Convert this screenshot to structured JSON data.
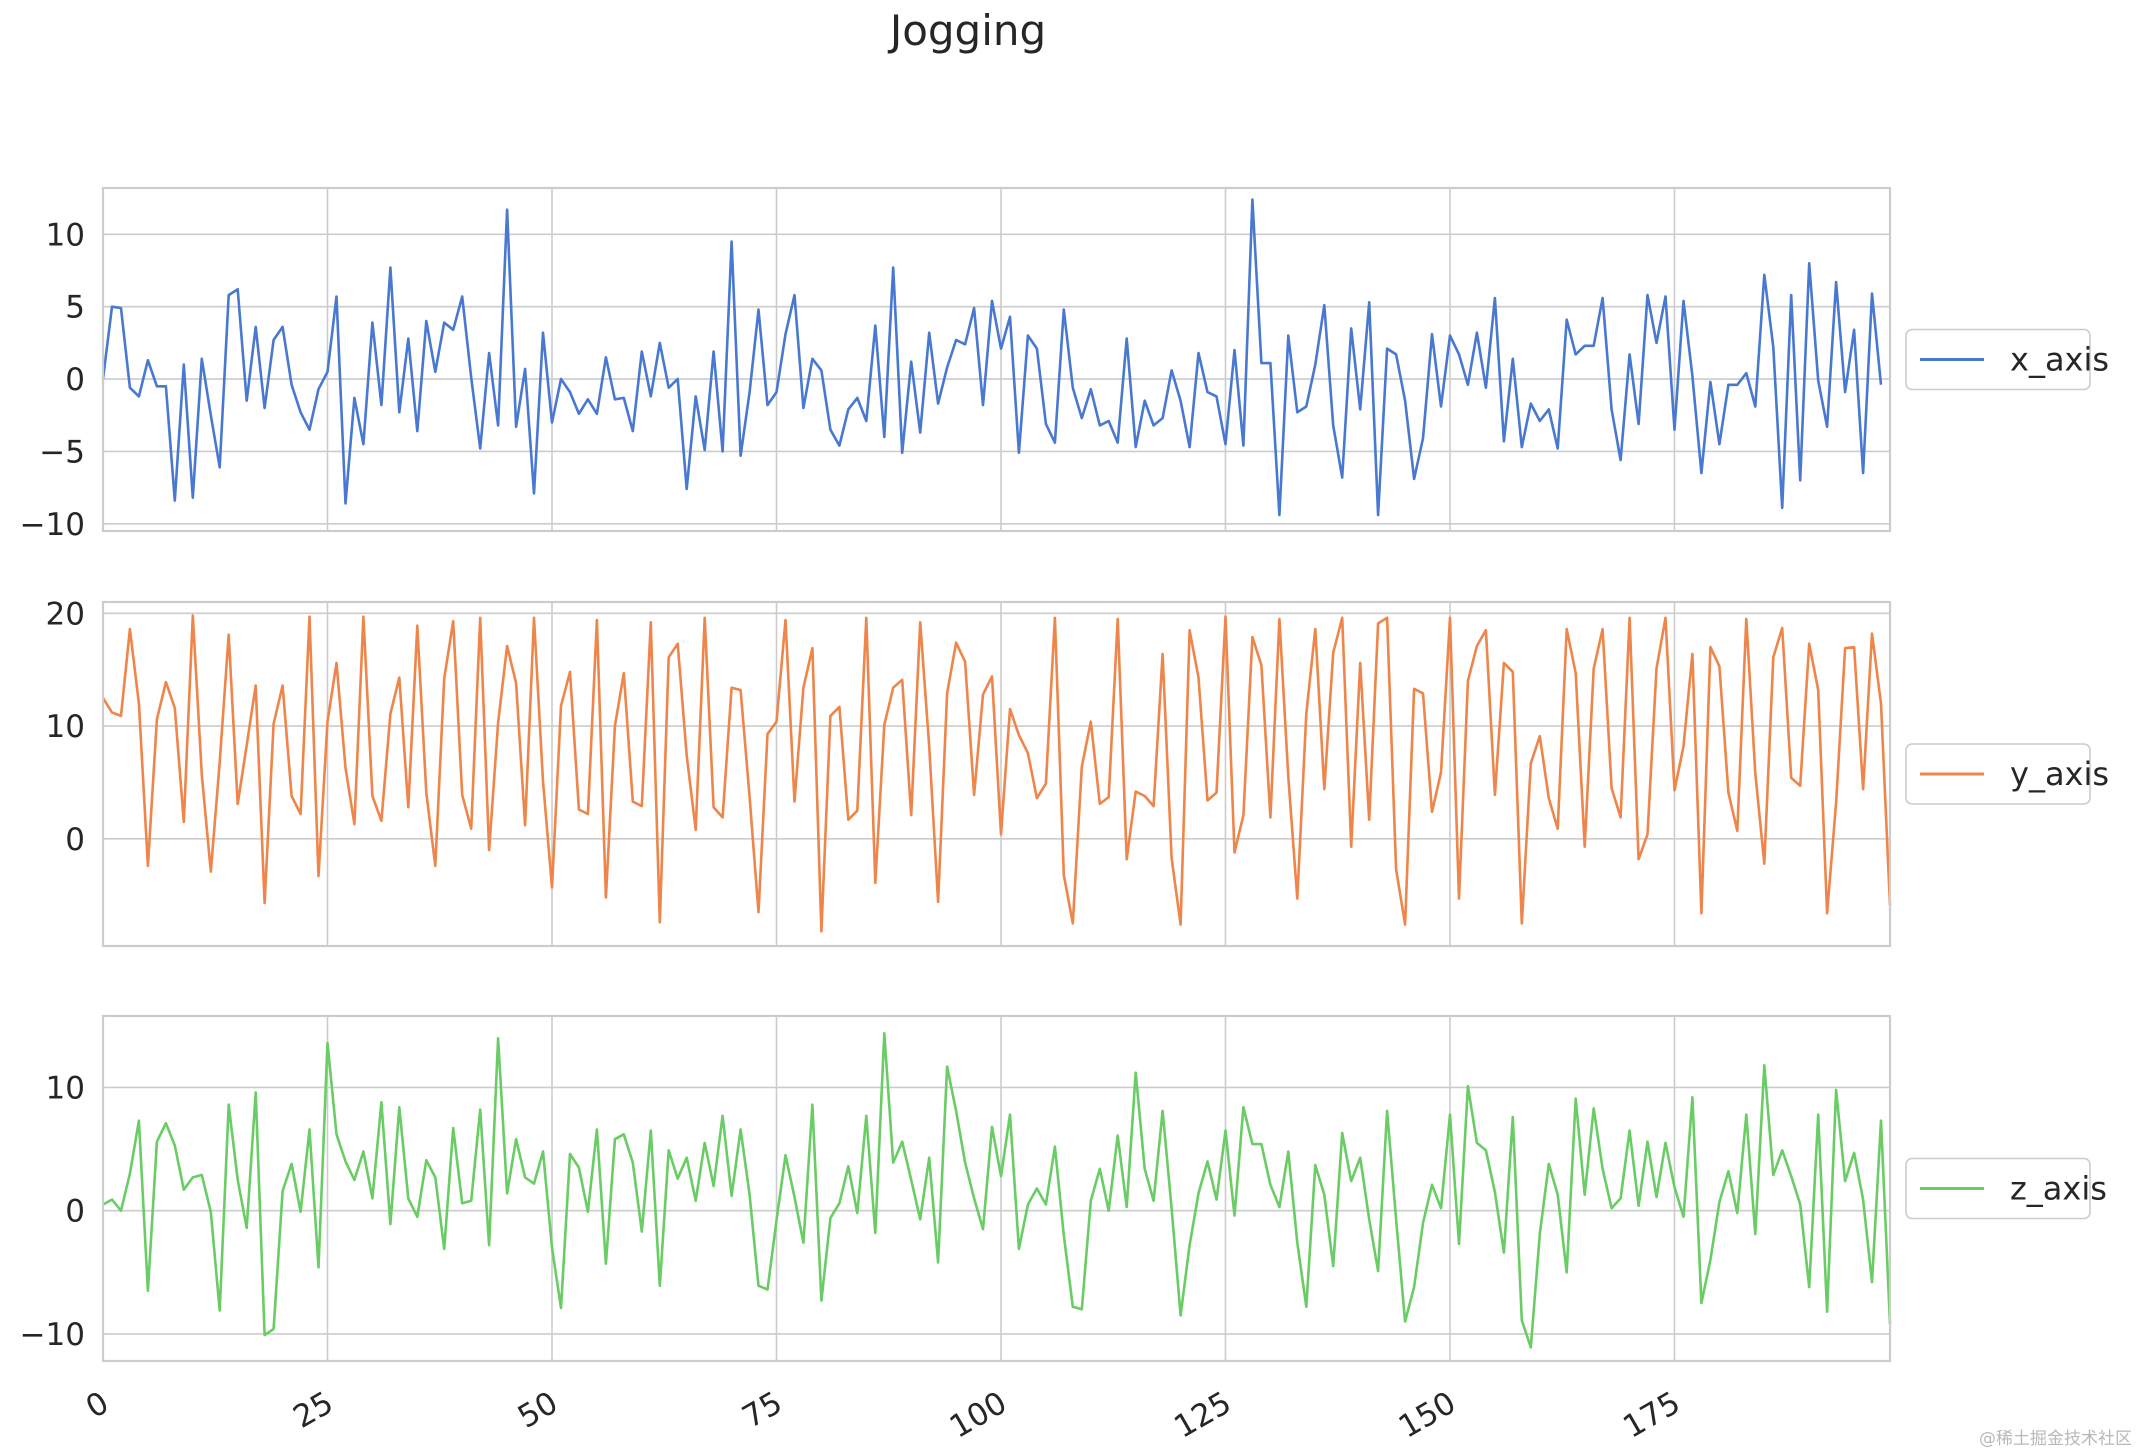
{
  "chart_data": {
    "type": "line",
    "title": "Jogging",
    "x_ticks": [
      0,
      25,
      50,
      75,
      100,
      125,
      150,
      175
    ],
    "x_range": [
      0,
      199
    ],
    "grid": true,
    "colors": {
      "x_axis": "#4878d0",
      "y_axis": "#ee854a",
      "z_axis": "#6acc64"
    },
    "legend_placement": "right-center",
    "series": [
      {
        "name": "x_axis",
        "color": "#4878d0",
        "ylim": [
          -10.5,
          13.2
        ],
        "yticks": [
          10,
          5,
          0,
          -5,
          -10
        ],
        "y_tick_labels": [
          "10",
          "5",
          "0",
          "−5",
          "−10"
        ],
        "values": [
          0,
          5,
          4.9,
          -0.6,
          -1.2,
          1.3,
          -0.5,
          -0.5,
          -8.4,
          1,
          -8.2,
          1.4,
          -2.5,
          -6.1,
          5.8,
          6.2,
          -1.5,
          3.6,
          -2,
          2.7,
          3.6,
          -0.4,
          -2.3,
          -3.5,
          -0.7,
          0.5,
          5.7,
          -8.6,
          -1.3,
          -4.5,
          3.9,
          -1.8,
          7.7,
          -2.3,
          2.8,
          -3.6,
          4,
          0.5,
          3.9,
          3.4,
          5.7,
          0.1,
          -4.8,
          1.8,
          -3.2,
          11.7,
          -3.3,
          0.7,
          -7.9,
          3.2,
          -3,
          0,
          -0.9,
          -2.4,
          -1.4,
          -2.4,
          1.5,
          -1.4,
          -1.3,
          -3.6,
          1.9,
          -1.2,
          2.5,
          -0.6,
          0,
          -7.6,
          -1.2,
          -4.9,
          1.9,
          -5,
          9.5,
          -5.3,
          -0.9,
          4.8,
          -1.8,
          -0.9,
          3.1,
          5.8,
          -2,
          1.4,
          0.6,
          -3.5,
          -4.6,
          -2.1,
          -1.3,
          -2.9,
          3.7,
          -4,
          7.7,
          -5.1,
          1.2,
          -3.7,
          3.2,
          -1.7,
          0.8,
          2.7,
          2.4,
          4.9,
          -1.8,
          5.4,
          2.1,
          4.3,
          -5.1,
          3,
          2.1,
          -3.1,
          -4.4,
          4.8,
          -0.6,
          -2.7,
          -0.7,
          -3.2,
          -2.9,
          -4.4,
          2.8,
          -4.7,
          -1.5,
          -3.2,
          -2.7,
          0.6,
          -1.5,
          -4.7,
          1.8,
          -0.9,
          -1.2,
          -4.5,
          2,
          -4.6,
          12.4,
          1.1,
          1.1,
          -9.4,
          3,
          -2.3,
          -1.9,
          1,
          5.1,
          -3.2,
          -6.8,
          3.5,
          -2.1,
          5.3,
          -9.4,
          2.1,
          1.7,
          -1.5,
          -6.9,
          -4.1,
          3.1,
          -1.9,
          3,
          1.7,
          -0.4,
          3.2,
          -0.6,
          5.6,
          -4.3,
          1.4,
          -4.7,
          -1.7,
          -2.9,
          -2.1,
          -4.8,
          4.1,
          1.7,
          2.3,
          2.3,
          5.6,
          -2.1,
          -5.6,
          1.7,
          -3.1,
          5.8,
          2.5,
          5.7,
          -3.5,
          5.4,
          0.2,
          -6.5,
          -0.2,
          -4.5,
          -0.4,
          -0.4,
          0.4,
          -1.9,
          7.2,
          2.2,
          -8.9,
          5.8,
          -7,
          8,
          -0.1,
          -3.3,
          6.7,
          -0.9,
          3.4,
          -6.5,
          5.9,
          -0.4
        ]
      },
      {
        "name": "y_axis",
        "color": "#ee854a",
        "ylim": [
          -9.5,
          21
        ],
        "yticks": [
          20,
          10,
          0
        ],
        "y_tick_labels": [
          "20",
          "10",
          "0"
        ],
        "values": [
          12.5,
          11.2,
          10.9,
          18.6,
          12,
          -2.4,
          10.6,
          13.9,
          11.6,
          1.5,
          19.8,
          5.7,
          -2.9,
          6.8,
          18.1,
          3.1,
          8.3,
          13.6,
          -5.7,
          10.2,
          13.6,
          3.8,
          2.2,
          19.7,
          -3.3,
          10.4,
          15.6,
          6.3,
          1.3,
          19.7,
          3.8,
          1.6,
          11.1,
          14.3,
          2.8,
          18.9,
          4.1,
          -2.4,
          14.2,
          19.3,
          3.9,
          0.9,
          19.6,
          -1,
          10.3,
          17.1,
          13.8,
          1.2,
          19.6,
          5.1,
          -4.3,
          11.8,
          14.8,
          2.6,
          2.2,
          19.4,
          -5.2,
          10,
          14.7,
          3.3,
          2.9,
          19.2,
          -7.4,
          16.1,
          17.3,
          7.4,
          0.8,
          19.6,
          2.8,
          1.9,
          13.4,
          13.2,
          3.7,
          -6.5,
          9.3,
          10.4,
          19.4,
          3.3,
          13.4,
          16.9,
          -8.2,
          10.9,
          11.7,
          1.7,
          2.5,
          19.6,
          -3.9,
          10.1,
          13.4,
          14.1,
          2.1,
          19.2,
          8.2,
          -5.6,
          12.9,
          17.4,
          15.7,
          3.9,
          12.8,
          14.4,
          0.4,
          11.5,
          9.2,
          7.6,
          3.6,
          4.9,
          19.6,
          -3.2,
          -7.5,
          6.4,
          10.4,
          3.1,
          3.7,
          19.5,
          -1.8,
          4.2,
          3.8,
          2.9,
          16.4,
          -1.7,
          -7.6,
          18.5,
          14.3,
          3.4,
          4.1,
          19.7,
          -1.2,
          2.1,
          17.9,
          15.4,
          1.9,
          19.5,
          5.5,
          -5.3,
          11.1,
          18.6,
          4.4,
          16.5,
          19.6,
          -0.7,
          15.6,
          1.7,
          19.1,
          19.6,
          -2.7,
          -7.6,
          13.3,
          12.9,
          2.4,
          5.9,
          19.6,
          -5.3,
          14,
          17.1,
          18.5,
          3.9,
          15.6,
          14.8,
          -7.5,
          6.7,
          9.1,
          3.6,
          0.9,
          18.6,
          14.7,
          -0.7,
          15.1,
          18.6,
          4.5,
          1.9,
          19.6,
          -1.8,
          0.4,
          15.1,
          19.6,
          4.3,
          8.2,
          16.4,
          -6.6,
          17,
          15.3,
          4.1,
          0.7,
          19.5,
          5.8,
          -2.2,
          16.1,
          18.7,
          5.4,
          4.7,
          17.3,
          13.2,
          -6.6,
          3.2,
          16.9,
          17,
          4.4,
          18.2,
          12,
          -5.9
        ]
      },
      {
        "name": "z_axis",
        "color": "#6acc64",
        "ylim": [
          -12.2,
          15.8
        ],
        "yticks": [
          10,
          0,
          -10
        ],
        "y_tick_labels": [
          "10",
          "0",
          "−10"
        ],
        "values": [
          0.5,
          0.9,
          0,
          3,
          7.3,
          -6.5,
          5.6,
          7.1,
          5.3,
          1.7,
          2.7,
          2.9,
          -0.1,
          -8.1,
          8.6,
          2.5,
          -1.4,
          9.6,
          -10.1,
          -9.6,
          1.6,
          3.8,
          -0.1,
          6.6,
          -4.6,
          13.6,
          6.2,
          4,
          2.5,
          4.8,
          1,
          8.8,
          -1.1,
          8.4,
          1,
          -0.5,
          4.1,
          2.7,
          -3.1,
          6.7,
          0.6,
          0.8,
          8.2,
          -2.8,
          14,
          1.4,
          5.8,
          2.7,
          2.2,
          4.8,
          -3,
          -7.9,
          4.6,
          3.5,
          -0.1,
          6.6,
          -4.3,
          5.8,
          6.2,
          3.9,
          -1.7,
          6.5,
          -6.1,
          4.9,
          2.6,
          4.3,
          0.8,
          5.5,
          2,
          7.7,
          1.2,
          6.6,
          1.3,
          -6.1,
          -6.4,
          -0.8,
          4.5,
          1.1,
          -2.6,
          8.6,
          -7.3,
          -0.6,
          0.6,
          3.6,
          -0.2,
          7.7,
          -1.8,
          14.4,
          3.9,
          5.6,
          2.5,
          -0.7,
          4.3,
          -4.2,
          11.7,
          8.1,
          3.9,
          1,
          -1.5,
          6.8,
          2.8,
          7.8,
          -3.1,
          0.5,
          1.8,
          0.5,
          5.2,
          -2,
          -7.8,
          -8,
          0.8,
          3.4,
          0,
          6.1,
          0.3,
          11.2,
          3.4,
          0.8,
          8.1,
          0.2,
          -8.5,
          -2.8,
          1.4,
          4,
          0.9,
          6.5,
          -0.4,
          8.4,
          5.4,
          5.4,
          2.1,
          0.3,
          4.8,
          -2.6,
          -7.8,
          3.7,
          1.3,
          -4.5,
          6.3,
          2.4,
          4.3,
          -0.7,
          -4.9,
          8.1,
          -0.7,
          -9,
          -6.2,
          -1,
          2.1,
          0.2,
          7.8,
          -2.7,
          10.1,
          5.5,
          4.9,
          1.5,
          -3.4,
          7.6,
          -8.9,
          -11.1,
          -1.9,
          3.8,
          1.3,
          -5,
          9.1,
          1.3,
          8.3,
          3.4,
          0.2,
          1,
          6.5,
          0.4,
          5.6,
          1.1,
          5.5,
          1.9,
          -0.5,
          9.2,
          -7.5,
          -4,
          0.7,
          3.2,
          -0.2,
          7.8,
          -1.9,
          11.8,
          2.9,
          4.9,
          2.8,
          0.5,
          -6.2,
          7.8,
          -8.2,
          9.8,
          2.4,
          4.7,
          0.9,
          -5.8,
          7.3,
          -9.2
        ]
      }
    ]
  },
  "watermark": "@稀土掘金技术社区"
}
